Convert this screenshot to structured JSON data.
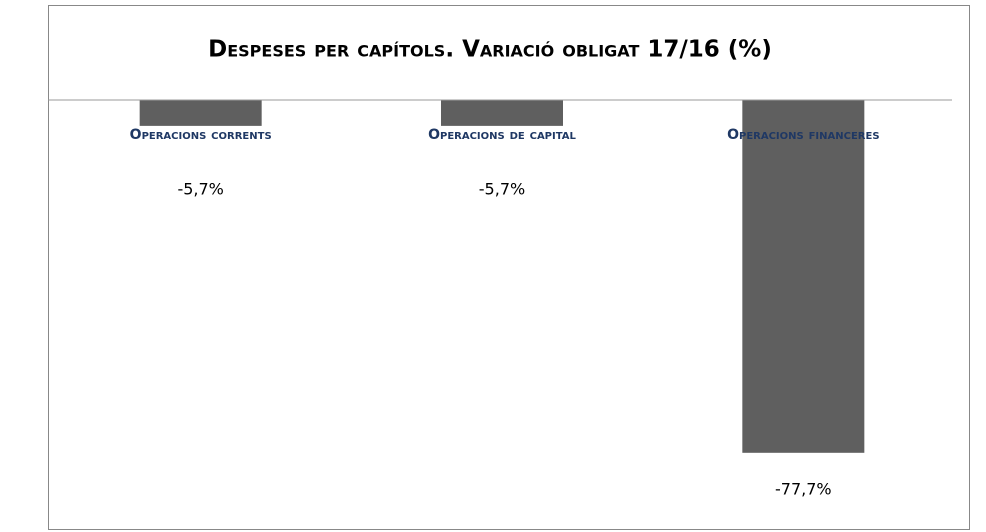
{
  "chart_data": {
    "type": "bar",
    "title": "Despeses per capítols. Variació obligat 17/16 (%)",
    "categories": [
      "Operacions corrents",
      "Operacions de capital",
      "Operacions financeres"
    ],
    "values": [
      -5.7,
      -5.7,
      -77.7
    ],
    "value_labels": [
      "-5,7%",
      "-5,7%",
      "-77,7%"
    ],
    "color": "#5f5f5f",
    "ylim": [
      -92.5,
      0
    ]
  }
}
